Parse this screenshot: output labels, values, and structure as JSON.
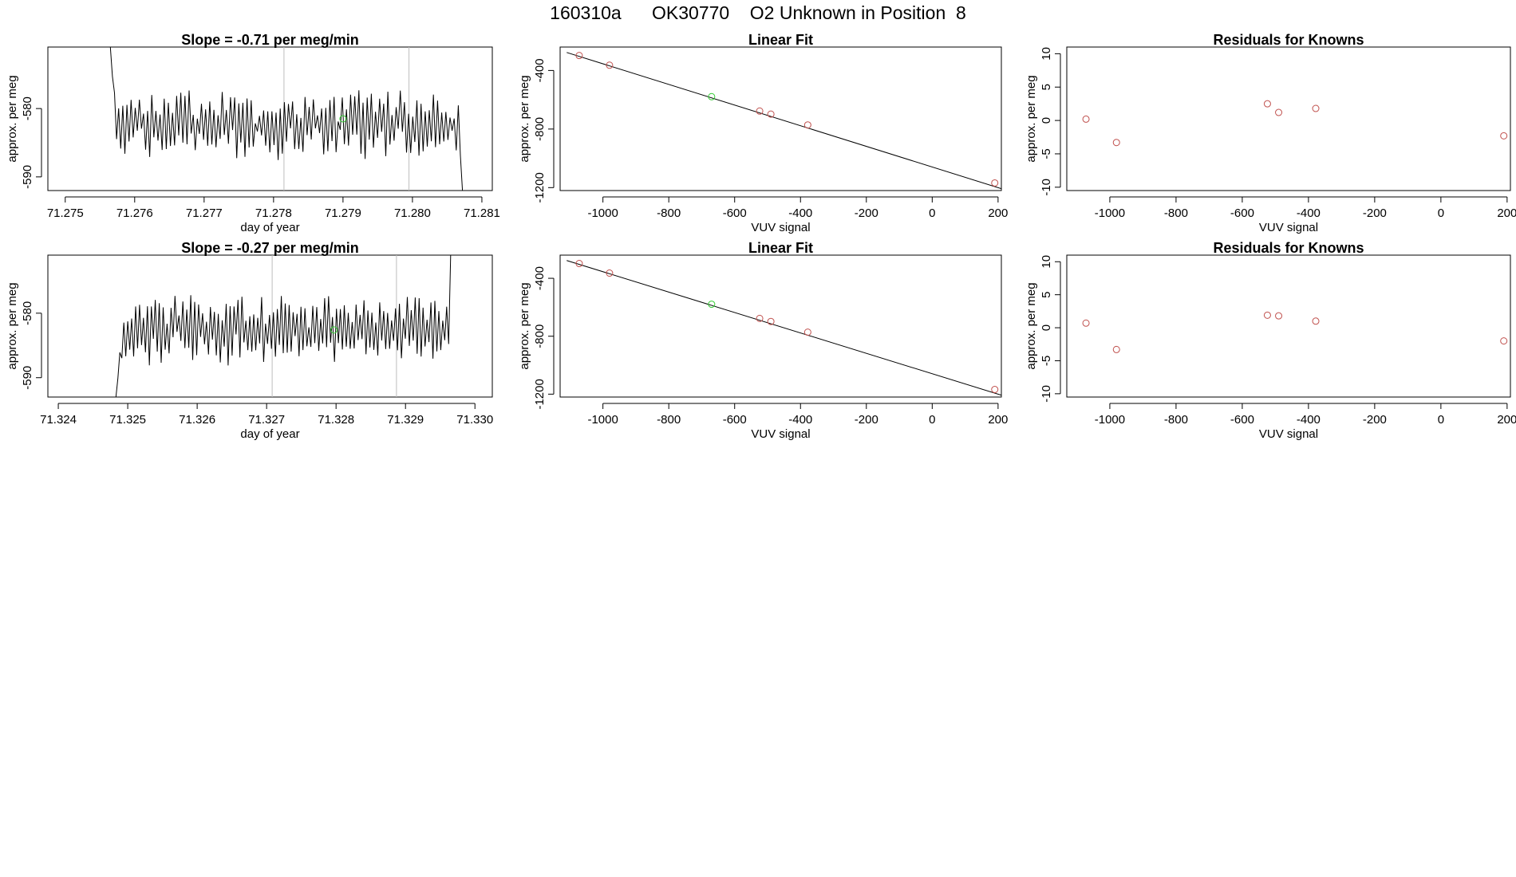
{
  "header": {
    "title": "160310a      OK30770    O2 Unknown in Position  8"
  },
  "colors": {
    "line": "#000000",
    "known_point": "#c0504d",
    "unknown_point": "#33cc33",
    "guide_line": "#bdbdbd",
    "axis": "#000000"
  },
  "chart_data": [
    {
      "type": "line",
      "title": "Slope =  -0.71  per meg/min",
      "xlabel": "day of year",
      "ylabel": "approx. per meg",
      "xlim": [
        71.27475,
        71.28115
      ],
      "ylim": [
        -592.0,
        -571.0
      ],
      "xticks": [
        71.275,
        71.276,
        71.277,
        71.278,
        71.279,
        71.28,
        71.281
      ],
      "xtick_labels": [
        "71.275",
        "71.276",
        "71.277",
        "71.278",
        "71.279",
        "71.280",
        "71.281"
      ],
      "yticks": [
        -580,
        -590
      ],
      "ytick_labels": [
        "-580",
        "-590"
      ],
      "vlines": [
        71.27815,
        71.27995
      ],
      "series": [
        {
          "x_start": 71.27565,
          "x_end": 71.28072,
          "seed": 7,
          "first_value": -571.0,
          "last_value": -592.0,
          "center": -582.3,
          "amplitude": 3.2
        }
      ],
      "unknown_point": {
        "x": 71.279,
        "y": -581.5
      }
    },
    {
      "type": "scatter",
      "title": "Linear Fit",
      "xlabel": "VUV signal",
      "ylabel": "approx. per meg",
      "xlim": [
        -1130,
        210
      ],
      "ylim": [
        -1220,
        -240
      ],
      "xticks": [
        -1000,
        -800,
        -600,
        -400,
        -200,
        0,
        200
      ],
      "xtick_labels": [
        "-1000",
        "-800",
        "-600",
        "-400",
        "-200",
        "0",
        "200"
      ],
      "yticks": [
        -400,
        -800,
        -1200
      ],
      "ytick_labels": [
        "-400",
        "-800",
        "-1200"
      ],
      "fit_line": {
        "x": [
          -1110,
          210
        ],
        "y": [
          -277,
          -1207
        ]
      },
      "knowns": {
        "x": [
          -1072,
          -980,
          -524,
          -490,
          -378,
          190
        ],
        "y": [
          -298,
          -364,
          -677,
          -698,
          -772,
          -1168
        ]
      },
      "unknowns": {
        "x": [
          -670
        ],
        "y": [
          -579
        ]
      }
    },
    {
      "type": "scatter",
      "title": "Residuals for Knowns",
      "xlabel": "VUV signal",
      "ylabel": "approx. per meg",
      "xlim": [
        -1130,
        210
      ],
      "ylim": [
        -10.5,
        11
      ],
      "xticks": [
        -1000,
        -800,
        -600,
        -400,
        -200,
        0,
        200
      ],
      "xtick_labels": [
        "-1000",
        "-800",
        "-600",
        "-400",
        "-200",
        "0",
        "200"
      ],
      "yticks": [
        10,
        5,
        0,
        -5,
        -10
      ],
      "ytick_labels": [
        "10",
        "5",
        "0",
        "-5",
        "-10"
      ],
      "points": {
        "x": [
          -1072,
          -980,
          -524,
          -490,
          -378,
          190
        ],
        "y": [
          0.2,
          -3.3,
          2.5,
          1.2,
          1.8,
          -2.3
        ]
      }
    },
    {
      "type": "line",
      "title": "Slope =  -0.27  per meg/min",
      "xlabel": "day of year",
      "ylabel": "approx. per meg",
      "xlim": [
        71.32385,
        71.33025
      ],
      "ylim": [
        -593.0,
        -571.0
      ],
      "xticks": [
        71.324,
        71.325,
        71.326,
        71.327,
        71.328,
        71.329,
        71.33
      ],
      "xtick_labels": [
        "71.324",
        "71.325",
        "71.326",
        "71.327",
        "71.328",
        "71.329",
        "71.330"
      ],
      "yticks": [
        -580,
        -590
      ],
      "ytick_labels": [
        "-580",
        "-590"
      ],
      "vlines": [
        71.32708,
        71.32887
      ],
      "series": [
        {
          "x_start": 71.32483,
          "x_end": 71.32965,
          "seed": 13,
          "first_value": -593.0,
          "last_value": -571.0,
          "center": -582.5,
          "amplitude": 3.2
        }
      ],
      "unknown_point": {
        "x": 71.32797,
        "y": -582.6
      }
    },
    {
      "type": "scatter",
      "title": "Linear Fit",
      "xlabel": "VUV signal",
      "ylabel": "approx. per meg",
      "xlim": [
        -1130,
        210
      ],
      "ylim": [
        -1220,
        -240
      ],
      "xticks": [
        -1000,
        -800,
        -600,
        -400,
        -200,
        0,
        200
      ],
      "xtick_labels": [
        "-1000",
        "-800",
        "-600",
        "-400",
        "-200",
        "0",
        "200"
      ],
      "yticks": [
        -400,
        -800,
        -1200
      ],
      "ytick_labels": [
        "-400",
        "-800",
        "-1200"
      ],
      "fit_line": {
        "x": [
          -1110,
          210
        ],
        "y": [
          -277,
          -1207
        ]
      },
      "knowns": {
        "x": [
          -1072,
          -980,
          -524,
          -490,
          -378,
          190
        ],
        "y": [
          -298,
          -364,
          -677,
          -698,
          -772,
          -1168
        ]
      },
      "unknowns": {
        "x": [
          -670
        ],
        "y": [
          -579
        ]
      }
    },
    {
      "type": "scatter",
      "title": "Residuals for Knowns",
      "xlabel": "VUV signal",
      "ylabel": "approx. per meg",
      "xlim": [
        -1130,
        210
      ],
      "ylim": [
        -10.5,
        11
      ],
      "xticks": [
        -1000,
        -800,
        -600,
        -400,
        -200,
        0,
        200
      ],
      "xtick_labels": [
        "-1000",
        "-800",
        "-600",
        "-400",
        "-200",
        "0",
        "200"
      ],
      "yticks": [
        10,
        5,
        0,
        -5,
        -10
      ],
      "ytick_labels": [
        "10",
        "5",
        "0",
        "-5",
        "-10"
      ],
      "points": {
        "x": [
          -1072,
          -980,
          -524,
          -490,
          -378,
          190
        ],
        "y": [
          0.7,
          -3.3,
          1.9,
          1.8,
          1.0,
          -2.0
        ]
      }
    }
  ]
}
